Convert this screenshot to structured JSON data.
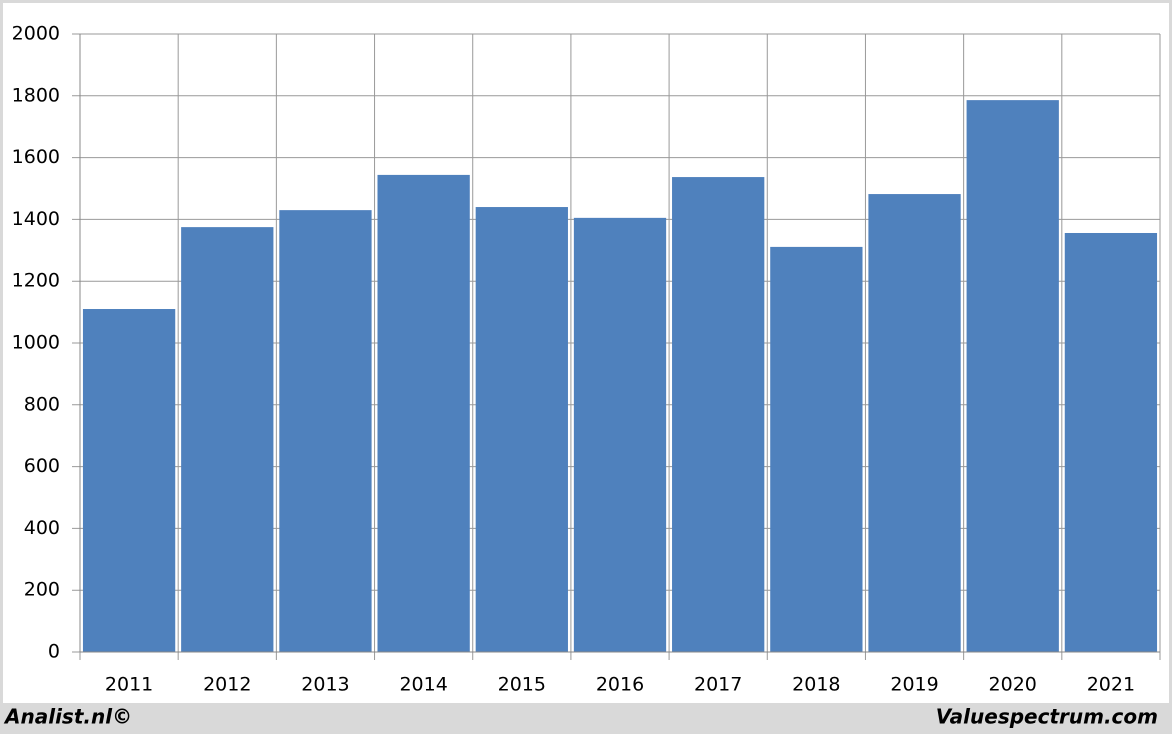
{
  "chart_data": {
    "type": "bar",
    "categories": [
      "2011",
      "2012",
      "2013",
      "2014",
      "2015",
      "2016",
      "2017",
      "2018",
      "2019",
      "2020",
      "2021"
    ],
    "values": [
      1110,
      1375,
      1430,
      1544,
      1440,
      1405,
      1537,
      1311,
      1482,
      1786,
      1356
    ],
    "color": "#4f81bd",
    "ylim": [
      0,
      2000
    ],
    "yticks": [
      0,
      200,
      400,
      600,
      800,
      1000,
      1200,
      1400,
      1600,
      1800,
      2000
    ],
    "grid": true
  },
  "footer": {
    "left": "Analist.nl©",
    "right": "Valuespectrum.com"
  }
}
